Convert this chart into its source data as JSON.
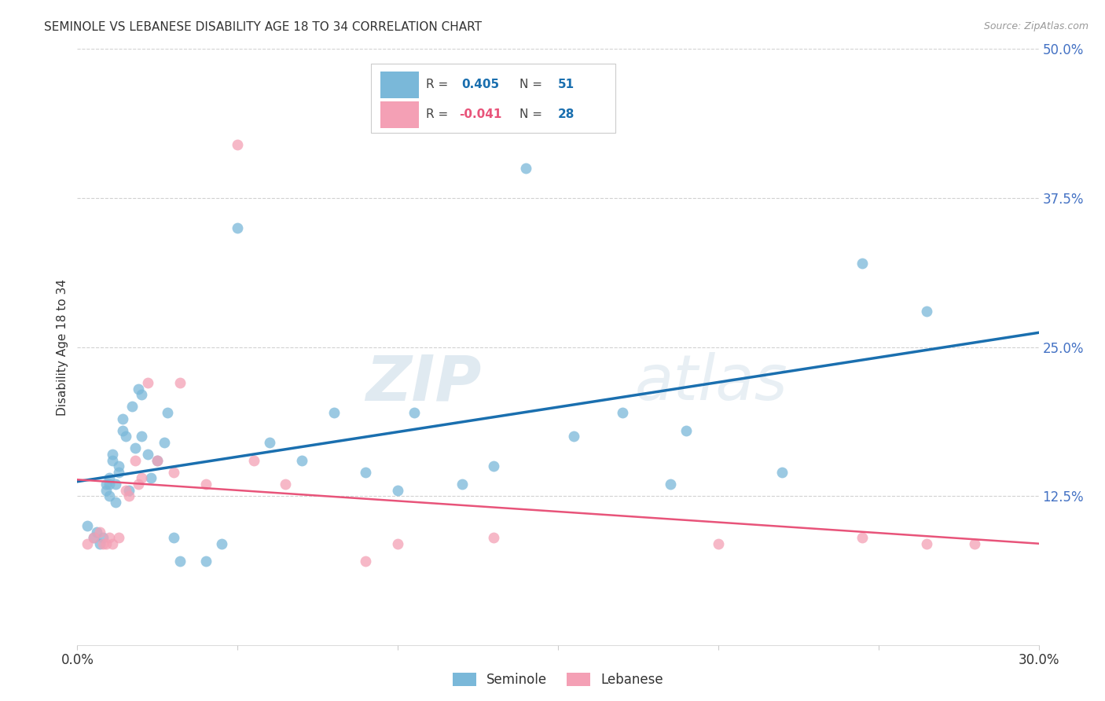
{
  "title": "SEMINOLE VS LEBANESE DISABILITY AGE 18 TO 34 CORRELATION CHART",
  "source": "Source: ZipAtlas.com",
  "ylabel_label": "Disability Age 18 to 34",
  "xlim": [
    0.0,
    0.3
  ],
  "ylim": [
    0.0,
    0.5
  ],
  "xtick_positions": [
    0.0,
    0.05,
    0.1,
    0.15,
    0.2,
    0.25,
    0.3
  ],
  "xtick_labels": [
    "0.0%",
    "",
    "",
    "",
    "",
    "",
    "30.0%"
  ],
  "ytick_positions": [
    0.125,
    0.25,
    0.375,
    0.5
  ],
  "ytick_labels": [
    "12.5%",
    "25.0%",
    "37.5%",
    "50.0%"
  ],
  "seminole_color": "#7ab8d9",
  "lebanese_color": "#f4a0b5",
  "seminole_line_color": "#1a6faf",
  "lebanese_line_color": "#e8547a",
  "background_color": "#ffffff",
  "grid_color": "#cccccc",
  "legend_R_seminole": "0.405",
  "legend_N_seminole": "51",
  "legend_R_lebanese": "-0.041",
  "legend_N_lebanese": "28",
  "watermark_zip": "ZIP",
  "watermark_atlas": "atlas",
  "axis_label_color": "#4472c4",
  "seminole_x": [
    0.003,
    0.005,
    0.006,
    0.007,
    0.008,
    0.009,
    0.009,
    0.01,
    0.01,
    0.01,
    0.011,
    0.011,
    0.012,
    0.012,
    0.013,
    0.013,
    0.014,
    0.014,
    0.015,
    0.016,
    0.017,
    0.018,
    0.019,
    0.02,
    0.02,
    0.022,
    0.023,
    0.025,
    0.027,
    0.028,
    0.03,
    0.032,
    0.04,
    0.045,
    0.05,
    0.06,
    0.07,
    0.08,
    0.09,
    0.1,
    0.105,
    0.12,
    0.13,
    0.14,
    0.155,
    0.17,
    0.185,
    0.19,
    0.22,
    0.245,
    0.265
  ],
  "seminole_y": [
    0.1,
    0.09,
    0.095,
    0.085,
    0.09,
    0.13,
    0.135,
    0.14,
    0.135,
    0.125,
    0.155,
    0.16,
    0.12,
    0.135,
    0.15,
    0.145,
    0.18,
    0.19,
    0.175,
    0.13,
    0.2,
    0.165,
    0.215,
    0.21,
    0.175,
    0.16,
    0.14,
    0.155,
    0.17,
    0.195,
    0.09,
    0.07,
    0.07,
    0.085,
    0.35,
    0.17,
    0.155,
    0.195,
    0.145,
    0.13,
    0.195,
    0.135,
    0.15,
    0.4,
    0.175,
    0.195,
    0.135,
    0.18,
    0.145,
    0.32,
    0.28
  ],
  "lebanese_x": [
    0.003,
    0.005,
    0.007,
    0.008,
    0.009,
    0.01,
    0.011,
    0.013,
    0.015,
    0.016,
    0.018,
    0.019,
    0.02,
    0.022,
    0.025,
    0.03,
    0.032,
    0.04,
    0.05,
    0.055,
    0.065,
    0.09,
    0.1,
    0.13,
    0.2,
    0.245,
    0.265,
    0.28
  ],
  "lebanese_y": [
    0.085,
    0.09,
    0.095,
    0.085,
    0.085,
    0.09,
    0.085,
    0.09,
    0.13,
    0.125,
    0.155,
    0.135,
    0.14,
    0.22,
    0.155,
    0.145,
    0.22,
    0.135,
    0.42,
    0.155,
    0.135,
    0.07,
    0.085,
    0.09,
    0.085,
    0.09,
    0.085,
    0.085
  ]
}
